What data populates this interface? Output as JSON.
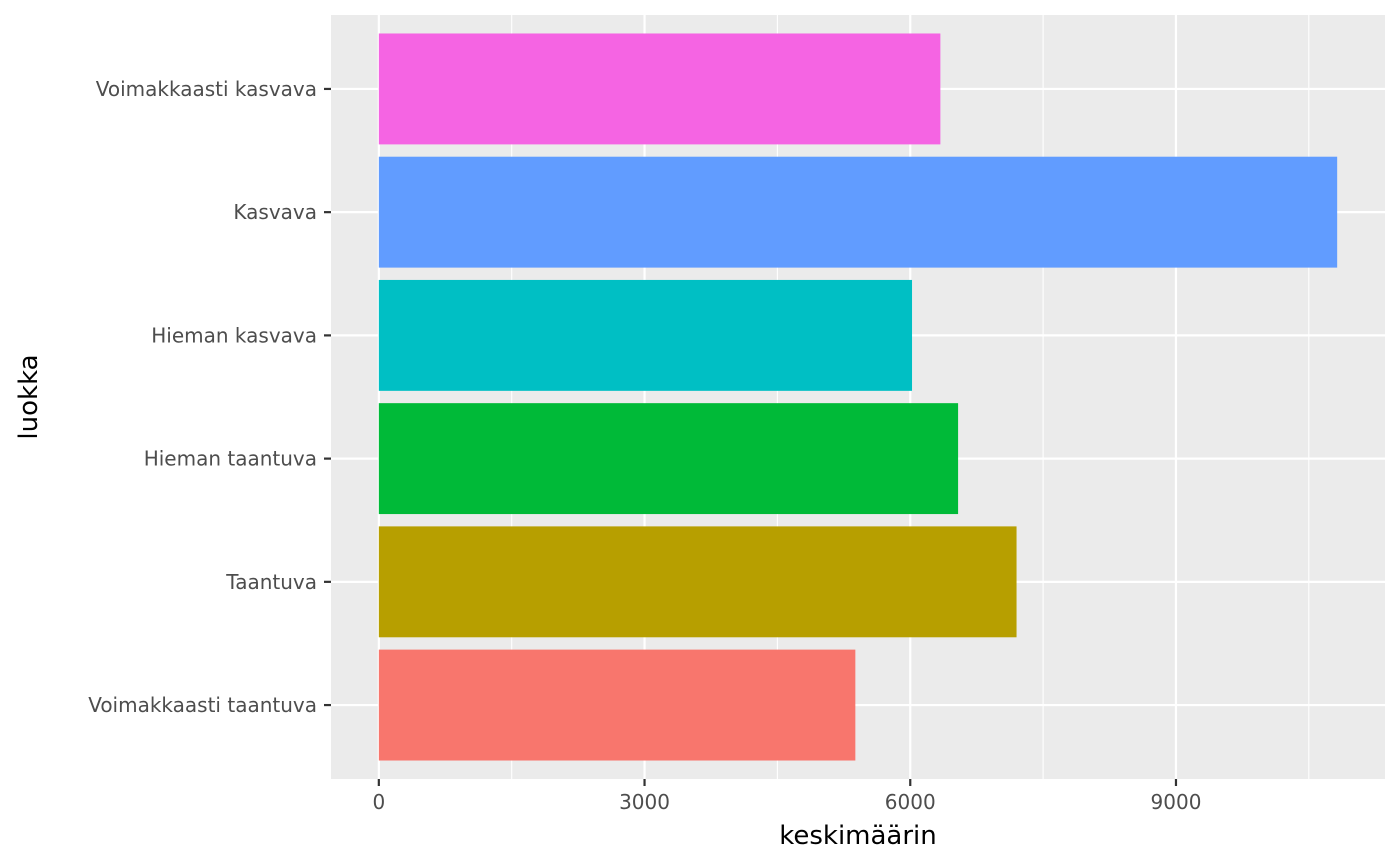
{
  "chart_data": {
    "type": "bar",
    "orientation": "horizontal",
    "categories": [
      "Voimakkaasti taantuva",
      "Taantuva",
      "Hieman taantuva",
      "Hieman kasvava",
      "Kasvava",
      "Voimakkaasti kasvava"
    ],
    "values": [
      5380,
      7200,
      6540,
      6020,
      10820,
      6340
    ],
    "colors": [
      "#F8766D",
      "#B79F00",
      "#00BA38",
      "#00BFC4",
      "#619CFF",
      "#F564E3"
    ],
    "title": "",
    "xlabel": "keskimäärin",
    "ylabel": "luokka",
    "xlim": [
      -540,
      11360
    ],
    "xticks": [
      0,
      3000,
      6000,
      9000
    ],
    "xtick_labels": [
      "0",
      "3000",
      "6000",
      "9000"
    ],
    "grid": true,
    "legend": "none",
    "panel_background": "#EBEBEB",
    "gridline_color": "#FFFFFF"
  }
}
